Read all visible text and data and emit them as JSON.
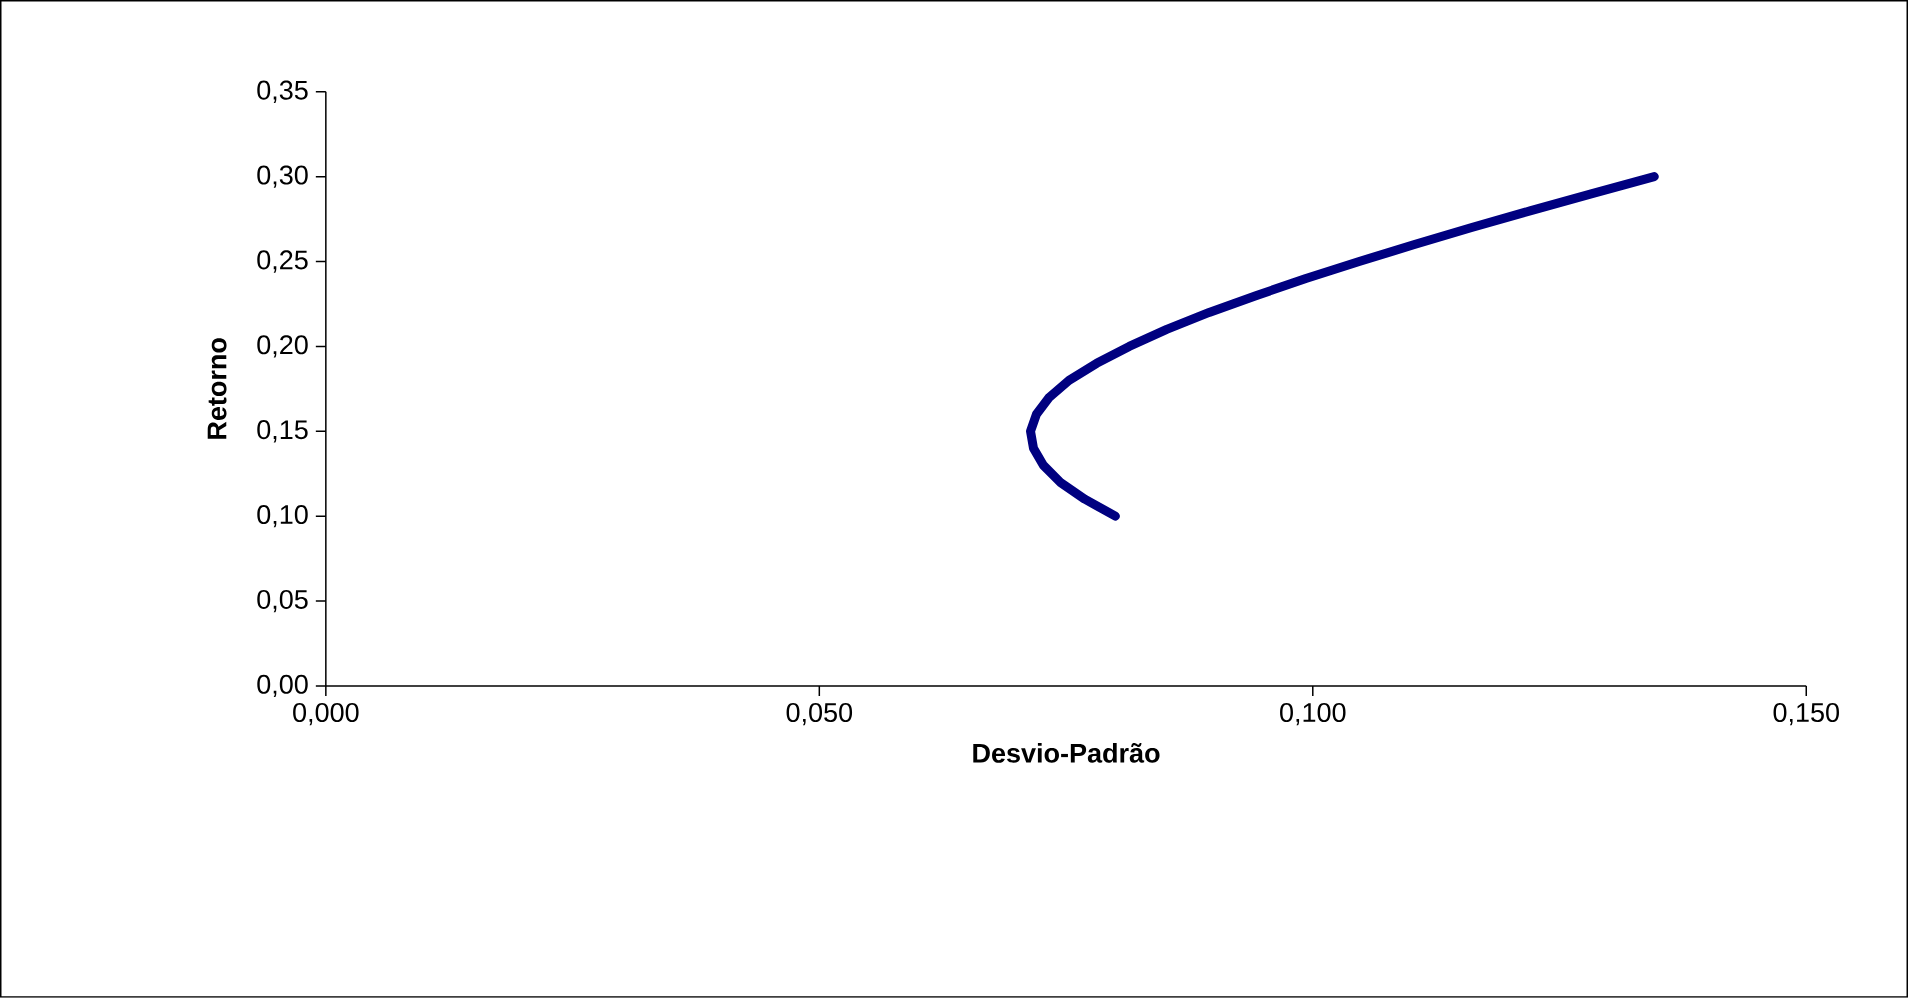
{
  "chart_data": {
    "type": "line",
    "xlabel": "**Desvio-Padrão**",
    "ylabel": "**Retorno**",
    "x": [
      0.08,
      0.0769,
      0.0744,
      0.0727,
      0.0717,
      0.0714,
      0.072,
      0.0733,
      0.0753,
      0.0781,
      0.0814,
      0.0852,
      0.0895,
      0.0943,
      0.0993,
      0.1047,
      0.1103,
      0.1161,
      0.1221,
      0.1283,
      0.1346
    ],
    "values": [
      0.1,
      0.11,
      0.12,
      0.13,
      0.14,
      0.15,
      0.16,
      0.17,
      0.18,
      0.19,
      0.2,
      0.21,
      0.22,
      0.23,
      0.24,
      0.25,
      0.26,
      0.27,
      0.28,
      0.29,
      0.3
    ],
    "color": "#000080",
    "marker": "none",
    "line_style": "solid",
    "grid": false,
    "xlim": [
      0,
      0.15
    ],
    "ylim": [
      0,
      0.35
    ],
    "xticks": [
      {
        "value": 0,
        "label": "0,000"
      },
      {
        "value": 0.05,
        "label": "0,050"
      },
      {
        "value": 0.1,
        "label": "0,100"
      },
      {
        "value": 0.15,
        "label": "0,150"
      }
    ],
    "yticks": [
      {
        "value": 0,
        "label": "0,00"
      },
      {
        "value": 0.05,
        "label": "0,05"
      },
      {
        "value": 0.1,
        "label": "0,10"
      },
      {
        "value": 0.15,
        "label": "0,15"
      },
      {
        "value": 0.2,
        "label": "0,20"
      },
      {
        "value": 0.25,
        "label": "0,25"
      },
      {
        "value": 0.3,
        "label": "0,30"
      },
      {
        "value": 0.35,
        "label": "0,35"
      }
    ]
  }
}
